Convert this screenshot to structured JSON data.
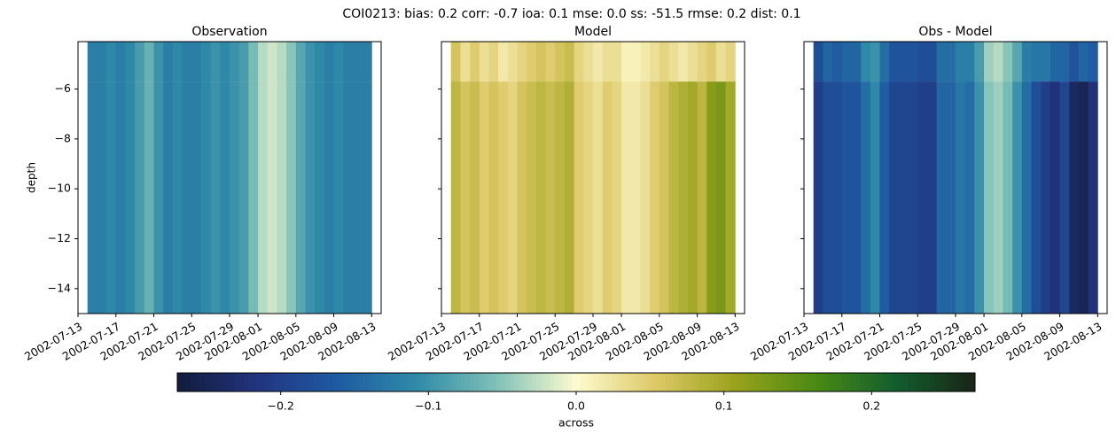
{
  "title": "COI0213: bias: 0.2  corr: -0.7  ioa: 0.1  mse: 0.0  ss: -51.5  rmse: 0.2  dist: 0.1",
  "chart_data": [
    {
      "type": "heatmap",
      "title": "Observation",
      "ylabel": "depth",
      "x": [
        "2002-07-14",
        "2002-07-15",
        "2002-07-16",
        "2002-07-17",
        "2002-07-18",
        "2002-07-19",
        "2002-07-20",
        "2002-07-21",
        "2002-07-22",
        "2002-07-23",
        "2002-07-24",
        "2002-07-25",
        "2002-07-26",
        "2002-07-27",
        "2002-07-28",
        "2002-07-29",
        "2002-07-30",
        "2002-07-31",
        "2002-08-01",
        "2002-08-02",
        "2002-08-03",
        "2002-08-04",
        "2002-08-05",
        "2002-08-06",
        "2002-08-07",
        "2002-08-08",
        "2002-08-09",
        "2002-08-10",
        "2002-08-11",
        "2002-08-12"
      ],
      "y_edges": [
        -15,
        -5.7,
        -4.1
      ],
      "z": [
        [
          -0.12,
          -0.12,
          -0.11,
          -0.12,
          -0.11,
          -0.09,
          -0.07,
          -0.1,
          -0.12,
          -0.11,
          -0.12,
          -0.12,
          -0.11,
          -0.1,
          -0.11,
          -0.1,
          -0.09,
          -0.06,
          -0.03,
          -0.02,
          -0.03,
          -0.05,
          -0.08,
          -0.1,
          -0.11,
          -0.12,
          -0.11,
          -0.12,
          -0.12,
          -0.12
        ],
        [
          -0.12,
          -0.12,
          -0.11,
          -0.12,
          -0.11,
          -0.09,
          -0.07,
          -0.1,
          -0.12,
          -0.11,
          -0.12,
          -0.12,
          -0.11,
          -0.1,
          -0.11,
          -0.1,
          -0.09,
          -0.06,
          -0.03,
          -0.02,
          -0.03,
          -0.05,
          -0.08,
          -0.1,
          -0.11,
          -0.12,
          -0.11,
          -0.12,
          -0.12,
          -0.12
        ]
      ],
      "xlim": [
        "2002-07-13",
        "2002-08-14"
      ],
      "xticks": [
        "2002-07-13",
        "2002-07-17",
        "2002-07-21",
        "2002-07-25",
        "2002-07-29",
        "2002-08-01",
        "2002-08-05",
        "2002-08-09",
        "2002-08-13"
      ],
      "ylim": [
        -15,
        -4.1
      ],
      "yticks": [
        {
          "value": -6,
          "label": "−6"
        },
        {
          "value": -8,
          "label": "−8"
        },
        {
          "value": -10,
          "label": "−10"
        },
        {
          "value": -12,
          "label": "−12"
        },
        {
          "value": -14,
          "label": "−14"
        }
      ]
    },
    {
      "type": "heatmap",
      "title": "Model",
      "x": [
        "2002-07-14",
        "2002-07-15",
        "2002-07-16",
        "2002-07-17",
        "2002-07-18",
        "2002-07-19",
        "2002-07-20",
        "2002-07-21",
        "2002-07-22",
        "2002-07-23",
        "2002-07-24",
        "2002-07-25",
        "2002-07-26",
        "2002-07-27",
        "2002-07-28",
        "2002-07-29",
        "2002-07-30",
        "2002-07-31",
        "2002-08-01",
        "2002-08-02",
        "2002-08-03",
        "2002-08-04",
        "2002-08-05",
        "2002-08-06",
        "2002-08-07",
        "2002-08-08",
        "2002-08-09",
        "2002-08-10",
        "2002-08-11",
        "2002-08-12"
      ],
      "y_edges": [
        -15,
        -5.7,
        -4.1
      ],
      "z": [
        [
          0.08,
          0.06,
          0.07,
          0.05,
          0.06,
          0.05,
          0.04,
          0.06,
          0.07,
          0.08,
          0.07,
          0.08,
          0.09,
          0.05,
          0.04,
          0.03,
          0.05,
          0.04,
          0.02,
          0.02,
          0.03,
          0.05,
          0.06,
          0.08,
          0.09,
          0.1,
          0.08,
          0.12,
          0.13,
          0.1
        ],
        [
          0.06,
          0.03,
          0.05,
          0.03,
          0.04,
          0.02,
          0.03,
          0.04,
          0.05,
          0.06,
          0.05,
          0.06,
          0.07,
          0.04,
          0.03,
          0.02,
          0.03,
          0.03,
          0.01,
          0.01,
          0.02,
          0.03,
          0.04,
          0.03,
          0.02,
          0.03,
          0.04,
          0.05,
          0.03,
          0.04
        ]
      ],
      "xlim": [
        "2002-07-13",
        "2002-08-14"
      ],
      "xticks": [
        "2002-07-13",
        "2002-07-17",
        "2002-07-21",
        "2002-07-25",
        "2002-07-29",
        "2002-08-01",
        "2002-08-05",
        "2002-08-09",
        "2002-08-13"
      ],
      "ylim": [
        -15,
        -4.1
      ],
      "yticks": [
        -6,
        -8,
        -10,
        -12,
        -14
      ],
      "ytick_labels": false
    },
    {
      "type": "heatmap",
      "title": "Obs - Model",
      "x": [
        "2002-07-14",
        "2002-07-15",
        "2002-07-16",
        "2002-07-17",
        "2002-07-18",
        "2002-07-19",
        "2002-07-20",
        "2002-07-21",
        "2002-07-22",
        "2002-07-23",
        "2002-07-24",
        "2002-07-25",
        "2002-07-26",
        "2002-07-27",
        "2002-07-28",
        "2002-07-29",
        "2002-07-30",
        "2002-07-31",
        "2002-08-01",
        "2002-08-02",
        "2002-08-03",
        "2002-08-04",
        "2002-08-05",
        "2002-08-06",
        "2002-08-07",
        "2002-08-08",
        "2002-08-09",
        "2002-08-10",
        "2002-08-11",
        "2002-08-12"
      ],
      "y_edges": [
        -15,
        -5.7,
        -4.1
      ],
      "z": [
        [
          -0.2,
          -0.18,
          -0.18,
          -0.17,
          -0.17,
          -0.14,
          -0.11,
          -0.16,
          -0.19,
          -0.19,
          -0.19,
          -0.2,
          -0.2,
          -0.15,
          -0.15,
          -0.13,
          -0.14,
          -0.1,
          -0.05,
          -0.04,
          -0.06,
          -0.1,
          -0.14,
          -0.18,
          -0.2,
          -0.22,
          -0.19,
          -0.24,
          -0.25,
          -0.22
        ],
        [
          -0.18,
          -0.15,
          -0.16,
          -0.15,
          -0.15,
          -0.11,
          -0.1,
          -0.14,
          -0.17,
          -0.17,
          -0.17,
          -0.18,
          -0.18,
          -0.14,
          -0.14,
          -0.12,
          -0.12,
          -0.09,
          -0.04,
          -0.03,
          -0.05,
          -0.08,
          -0.12,
          -0.13,
          -0.13,
          -0.15,
          -0.15,
          -0.17,
          -0.15,
          -0.16
        ]
      ],
      "xlim": [
        "2002-07-13",
        "2002-08-14"
      ],
      "xticks": [
        "2002-07-13",
        "2002-07-17",
        "2002-07-21",
        "2002-07-25",
        "2002-07-29",
        "2002-08-01",
        "2002-08-05",
        "2002-08-09",
        "2002-08-13"
      ],
      "ylim": [
        -15,
        -4.1
      ],
      "yticks": [
        -6,
        -8,
        -10,
        -12,
        -14
      ],
      "ytick_labels": false
    },
    {
      "type": "colorbar",
      "label": "across",
      "clim": [
        -0.27,
        0.27
      ],
      "colormap": [
        "#121b3b",
        "#22347f",
        "#1e5aa2",
        "#2f8aa8",
        "#7fc1b7",
        "#fdfbd0",
        "#ddc866",
        "#99a21c",
        "#4a8a14",
        "#125e2f",
        "#1a2416"
      ],
      "ticks": [
        {
          "value": -0.2,
          "label": "−0.2"
        },
        {
          "value": -0.1,
          "label": "−0.1"
        },
        {
          "value": 0,
          "label": "0.0"
        },
        0.1,
        0.2
      ]
    }
  ]
}
